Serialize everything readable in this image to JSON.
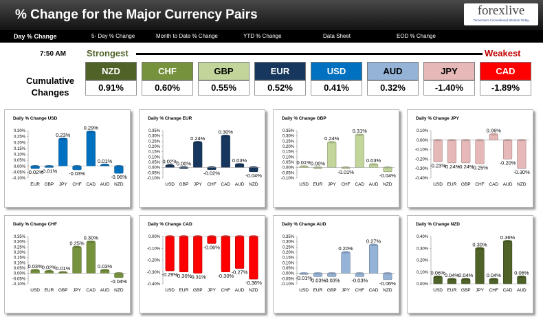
{
  "header": {
    "title": "% Change for the Major Currency Pairs",
    "logo": {
      "text": "forexlive",
      "tagline": "Tomorrow's Conventional Wisdom Today"
    }
  },
  "nav": {
    "items": [
      {
        "label": "Day % Change",
        "active": true
      },
      {
        "label": "5- Day % Change",
        "active": false
      },
      {
        "label": "Month to Date % Change",
        "active": false
      },
      {
        "label": "YTD % Change",
        "active": false
      },
      {
        "label": "Data Sheet",
        "active": false
      },
      {
        "label": "EOD % Change",
        "active": false
      }
    ]
  },
  "ranking": {
    "time": "7:50 AM",
    "strongest_label": "Strongest",
    "weakest_label": "Weakest",
    "cumulative_label_line1": "Cumulative",
    "cumulative_label_line2": "Changes",
    "currencies": [
      {
        "code": "NZD",
        "value": "0.91%",
        "color": "#4f6228"
      },
      {
        "code": "CHF",
        "value": "0.60%",
        "color": "#76923c"
      },
      {
        "code": "GBP",
        "value": "0.55%",
        "color": "#c2d69b"
      },
      {
        "code": "EUR",
        "value": "0.52%",
        "color": "#17375e"
      },
      {
        "code": "USD",
        "value": "0.41%",
        "color": "#0070c0"
      },
      {
        "code": "AUD",
        "value": "0.32%",
        "color": "#95b3d7"
      },
      {
        "code": "JPY",
        "value": "-1.40%",
        "color": "#e6b9b8"
      },
      {
        "code": "CAD",
        "value": "-1.89%",
        "color": "#ff0000"
      }
    ]
  },
  "chart_data": [
    {
      "type": "bar",
      "title": "Daily % Change USD",
      "color": "#0070c0",
      "categories": [
        "EUR",
        "GBP",
        "JPY",
        "CHF",
        "CAD",
        "AUD",
        "NZD"
      ],
      "values": [
        -0.02,
        -0.01,
        0.23,
        -0.03,
        0.29,
        0.01,
        -0.06
      ],
      "labels": [
        "-0.02%",
        "-0.01%",
        "0.23%",
        "-0.03%",
        "0.29%",
        "0.01%",
        "-0.06%"
      ],
      "ylim": [
        -0.1,
        0.3
      ],
      "ticks": [
        "0.30%",
        "0.25%",
        "0.20%",
        "0.15%",
        "0.10%",
        "0.05%",
        "0.00%",
        "-0.05%",
        "-0.10%"
      ]
    },
    {
      "type": "bar",
      "title": "Daily % Change EUR",
      "color": "#17375e",
      "categories": [
        "USD",
        "GBP",
        "JPY",
        "CHF",
        "CAD",
        "AUD",
        "NZD"
      ],
      "values": [
        0.02,
        0.0,
        0.24,
        -0.02,
        0.3,
        0.03,
        -0.04
      ],
      "labels": [
        "0.02%",
        "0.00%",
        "0.24%",
        "-0.02%",
        "0.30%",
        "0.03%",
        "-0.04%"
      ],
      "ylim": [
        -0.1,
        0.35
      ],
      "ticks": [
        "0.35%",
        "0.30%",
        "0.25%",
        "0.20%",
        "0.15%",
        "0.10%",
        "0.05%",
        "0.00%",
        "-0.05%",
        "-0.10%"
      ]
    },
    {
      "type": "bar",
      "title": "Daily % Change GBP",
      "color": "#c2d69b",
      "categories": [
        "USD",
        "EUR",
        "JPY",
        "CHF",
        "CAD",
        "AUD",
        "NZD"
      ],
      "values": [
        0.01,
        0.0,
        0.24,
        -0.01,
        0.31,
        0.03,
        -0.04
      ],
      "labels": [
        "0.01%",
        "0.00%",
        "0.24%",
        "-0.01%",
        "0.31%",
        "0.03%",
        "-0.04%"
      ],
      "ylim": [
        -0.1,
        0.35
      ],
      "ticks": [
        "0.35%",
        "0.30%",
        "0.25%",
        "0.20%",
        "0.15%",
        "0.10%",
        "0.05%",
        "0.00%",
        "-0.05%",
        "-0.10%"
      ]
    },
    {
      "type": "bar",
      "title": "Daily % Change JPY",
      "color": "#e6b9b8",
      "categories": [
        "USD",
        "EUR",
        "GBP",
        "CHF",
        "CAD",
        "AUD",
        "NZD"
      ],
      "values": [
        -0.23,
        -0.24,
        -0.24,
        -0.25,
        0.06,
        -0.2,
        -0.3
      ],
      "labels": [
        "-0.23%",
        "-0.24%",
        "-0.24%",
        "-0.25%",
        "0.06%",
        "-0.20%",
        "-0.30%"
      ],
      "ylim": [
        -0.4,
        0.1
      ],
      "ticks": [
        "0.10%",
        "0.00%",
        "-0.10%",
        "-0.20%",
        "-0.30%",
        "-0.40%"
      ]
    },
    {
      "type": "bar",
      "title": "Daily % Change CHF",
      "color": "#76923c",
      "categories": [
        "USD",
        "EUR",
        "GBP",
        "JPY",
        "CAD",
        "AUD",
        "NZD"
      ],
      "values": [
        0.03,
        0.02,
        0.01,
        0.25,
        0.3,
        0.03,
        -0.04
      ],
      "labels": [
        "0.03%",
        "0.02%",
        "0.01%",
        "0.25%",
        "0.30%",
        "0.03%",
        "-0.04%"
      ],
      "ylim": [
        -0.1,
        0.35
      ],
      "ticks": [
        "0.35%",
        "0.30%",
        "0.25%",
        "0.20%",
        "0.15%",
        "0.10%",
        "0.05%",
        "0.00%",
        "-0.05%",
        "-0.10%"
      ]
    },
    {
      "type": "bar",
      "title": "Daily % Change CAD",
      "color": "#ff0000",
      "categories": [
        "USD",
        "EUR",
        "GBP",
        "JPY",
        "CHF",
        "AUD",
        "NZD"
      ],
      "values": [
        -0.29,
        -0.3,
        -0.31,
        -0.06,
        -0.3,
        -0.27,
        -0.36
      ],
      "labels": [
        "-0.29%",
        "-0.30%",
        "-0.31%",
        "-0.06%",
        "-0.30%",
        "-0.27%",
        "-0.36%"
      ],
      "ylim": [
        -0.4,
        0.0
      ],
      "ticks": [
        "0.00%",
        "-0.10%",
        "-0.20%",
        "-0.30%",
        "-0.40%"
      ]
    },
    {
      "type": "bar",
      "title": "Daily % Change AUD",
      "color": "#95b3d7",
      "categories": [
        "USD",
        "EUR",
        "GBP",
        "JPY",
        "CHF",
        "CAD",
        "NZD"
      ],
      "values": [
        -0.01,
        -0.03,
        -0.03,
        0.2,
        -0.03,
        0.27,
        -0.06
      ],
      "labels": [
        "-0.01%",
        "-0.03%",
        "-0.03%",
        "0.20%",
        "-0.03%",
        "0.27%",
        "-0.06%"
      ],
      "ylim": [
        -0.1,
        0.35
      ],
      "ticks": [
        "0.35%",
        "0.30%",
        "0.25%",
        "0.20%",
        "0.15%",
        "0.10%",
        "0.05%",
        "0.00%",
        "-0.05%",
        "-0.10%"
      ]
    },
    {
      "type": "bar",
      "title": "Daily % Change NZD",
      "color": "#4f6228",
      "categories": [
        "USD",
        "EUR",
        "GBP",
        "JPY",
        "CHF",
        "CAD",
        "AUD"
      ],
      "values": [
        0.06,
        0.04,
        0.04,
        0.3,
        0.04,
        0.36,
        0.06
      ],
      "labels": [
        "0.06%",
        "0.04%",
        "0.04%",
        "0.30%",
        "0.04%",
        "0.36%",
        "0.06%"
      ],
      "ylim": [
        0.0,
        0.4
      ],
      "ticks": [
        "0.40%",
        "0.30%",
        "0.20%",
        "0.10%",
        "0.00%"
      ]
    }
  ]
}
